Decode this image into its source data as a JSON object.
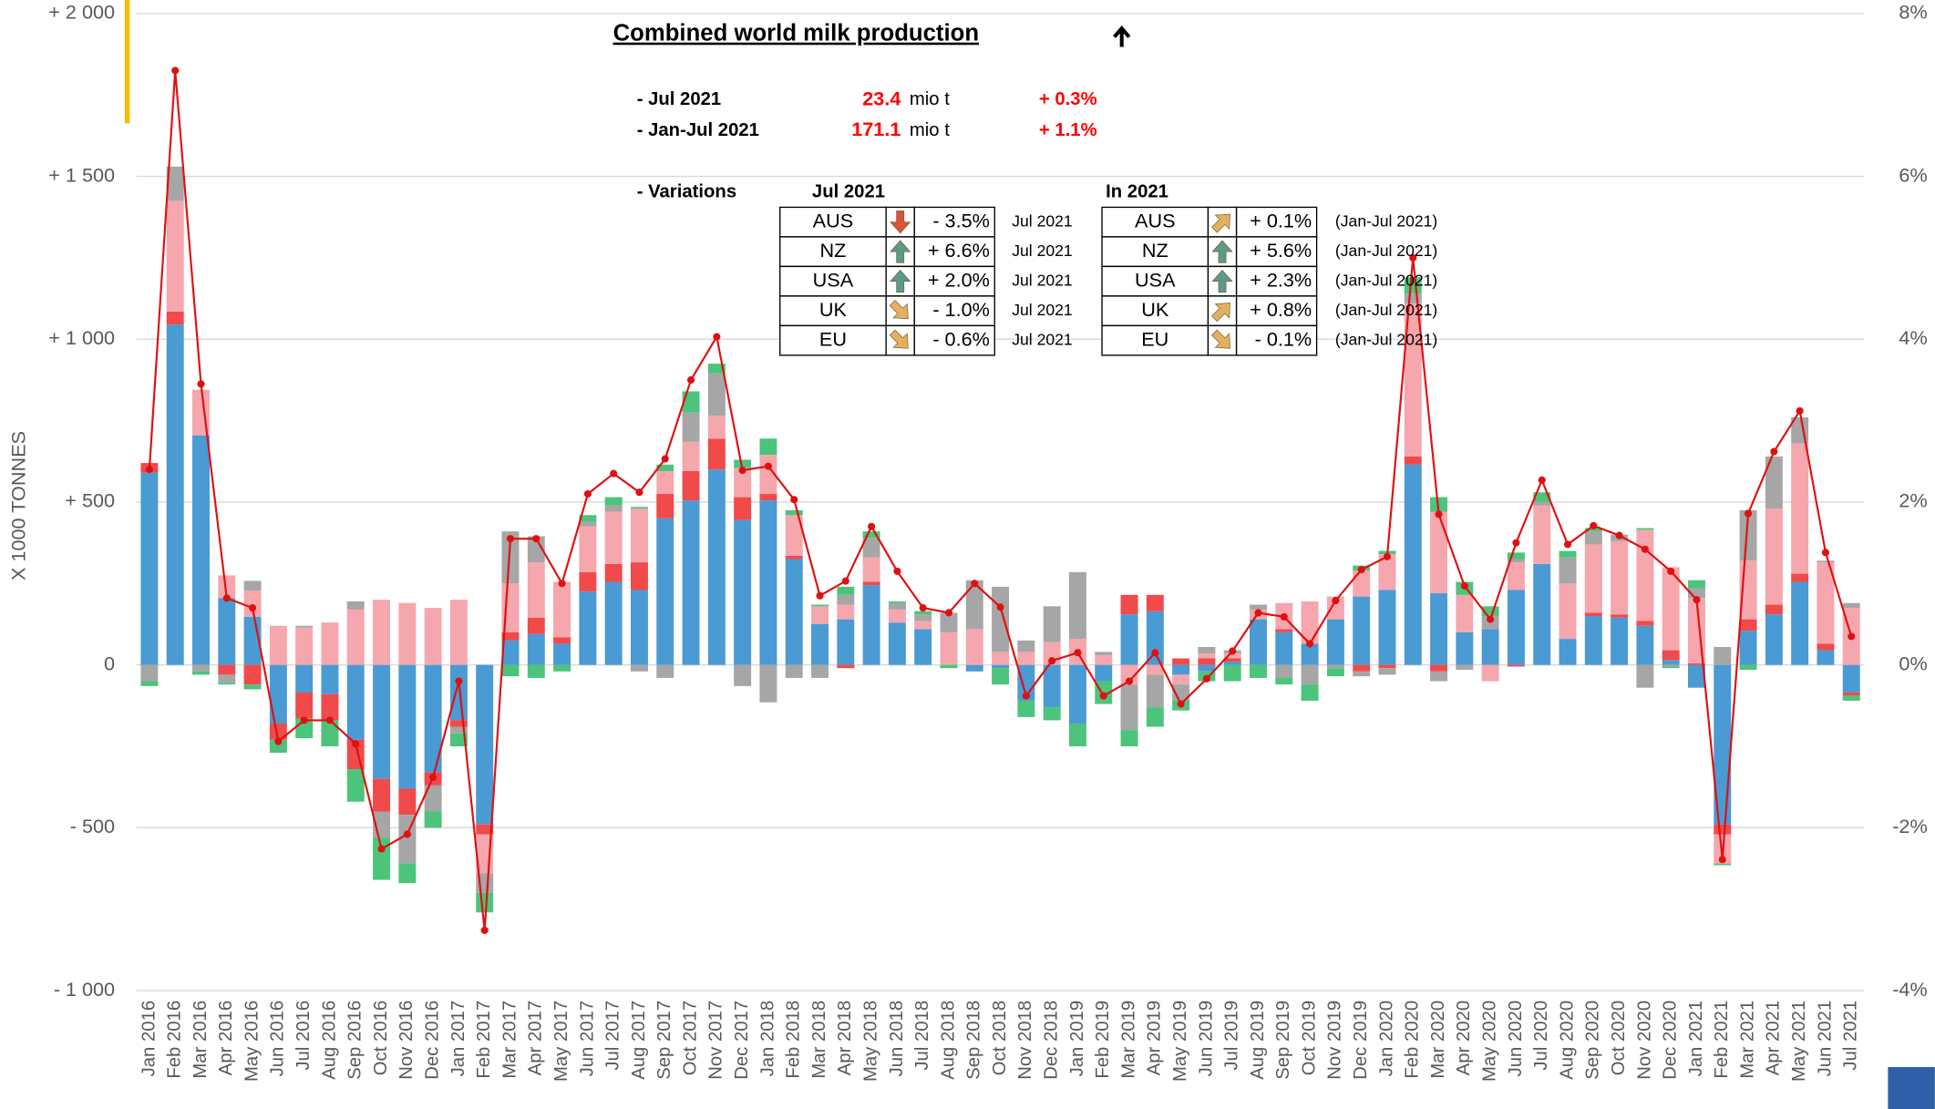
{
  "chart_data": {
    "type": "bar",
    "stacked": true,
    "title": "Combined world milk production",
    "ylabel": "X 1000 TONNES",
    "categories": [
      "Jan 2016",
      "Feb 2016",
      "Mar 2016",
      "Apr 2016",
      "May 2016",
      "Jun 2016",
      "Jul 2016",
      "Aug 2016",
      "Sep 2016",
      "Oct 2016",
      "Nov 2016",
      "Dec 2016",
      "Jan 2017",
      "Feb 2017",
      "Mar 2017",
      "Apr 2017",
      "May 2017",
      "Jun 2017",
      "Jul 2017",
      "Aug 2017",
      "Sep 2017",
      "Oct 2017",
      "Nov 2017",
      "Dec 2017",
      "Jan 2018",
      "Feb 2018",
      "Mar 2018",
      "Apr 2018",
      "May 2018",
      "Jun 2018",
      "Jul 2018",
      "Aug 2018",
      "Sep 2018",
      "Oct 2018",
      "Nov 2018",
      "Dec 2018",
      "Jan 2019",
      "Feb 2019",
      "Mar 2019",
      "Apr 2019",
      "May 2019",
      "Jun 2019",
      "Jul 2019",
      "Aug 2019",
      "Sep 2019",
      "Oct 2019",
      "Nov 2019",
      "Dec 2019",
      "Jan 2020",
      "Feb 2020",
      "Mar 2020",
      "Apr 2020",
      "May 2020",
      "Jun 2020",
      "Jul 2020",
      "Aug 2020",
      "Sep 2020",
      "Oct 2020",
      "Nov 2020",
      "Dec 2020",
      "Jan 2021",
      "Feb 2021",
      "Mar 2021",
      "Apr 2021",
      "May 2021",
      "Jun 2021",
      "Jul 2021"
    ],
    "series": [
      {
        "color": "#4a9ad4",
        "values": [
          590,
          1045,
          705,
          205,
          148,
          -180,
          -85,
          -90,
          -230,
          -350,
          -380,
          -330,
          -170,
          -490,
          75,
          95,
          65,
          225,
          255,
          230,
          450,
          505,
          600,
          445,
          505,
          325,
          125,
          140,
          245,
          130,
          110,
          0,
          -20,
          -10,
          -110,
          -130,
          -180,
          -50,
          155,
          165,
          -30,
          -20,
          10,
          140,
          100,
          65,
          140,
          210,
          230,
          615,
          220,
          100,
          110,
          230,
          310,
          80,
          150,
          145,
          120,
          15,
          -70,
          -490,
          105,
          155,
          255,
          45,
          -85
        ]
      },
      {
        "color": "#f04a4a",
        "values": [
          30,
          40,
          0,
          -30,
          -60,
          -50,
          -80,
          -80,
          -90,
          -100,
          -80,
          -40,
          -20,
          -30,
          25,
          50,
          20,
          60,
          55,
          85,
          75,
          90,
          95,
          70,
          20,
          10,
          0,
          -10,
          10,
          0,
          0,
          0,
          0,
          0,
          0,
          0,
          0,
          0,
          60,
          50,
          20,
          20,
          10,
          0,
          10,
          0,
          0,
          -20,
          -10,
          25,
          -20,
          0,
          0,
          -5,
          0,
          0,
          10,
          10,
          15,
          30,
          5,
          -30,
          35,
          30,
          25,
          20,
          -10
        ]
      },
      {
        "color": "#f6a6ad",
        "values": [
          0,
          340,
          140,
          70,
          80,
          120,
          115,
          130,
          170,
          200,
          190,
          175,
          200,
          -120,
          150,
          170,
          170,
          140,
          160,
          165,
          70,
          90,
          70,
          90,
          120,
          125,
          55,
          45,
          75,
          40,
          25,
          100,
          110,
          40,
          40,
          70,
          80,
          30,
          -60,
          -30,
          -30,
          15,
          15,
          30,
          80,
          130,
          70,
          80,
          110,
          470,
          250,
          115,
          -50,
          85,
          180,
          170,
          210,
          225,
          280,
          255,
          200,
          -90,
          180,
          295,
          400,
          250,
          175
        ]
      },
      {
        "color": "#a6a6a6",
        "values": [
          -50,
          105,
          -20,
          -25,
          30,
          0,
          5,
          0,
          25,
          -80,
          -150,
          -80,
          -20,
          -60,
          160,
          80,
          0,
          15,
          20,
          -20,
          -40,
          90,
          130,
          -65,
          -115,
          -40,
          -40,
          30,
          60,
          20,
          20,
          60,
          150,
          200,
          35,
          110,
          205,
          10,
          -140,
          -100,
          -50,
          20,
          10,
          15,
          -40,
          -60,
          -10,
          -15,
          -20,
          30,
          -30,
          -15,
          40,
          10,
          10,
          80,
          40,
          20,
          -70,
          -5,
          30,
          55,
          155,
          160,
          80,
          5,
          15
        ]
      },
      {
        "color": "#4cc47c",
        "values": [
          -15,
          0,
          -10,
          -5,
          -15,
          -40,
          -60,
          -80,
          -100,
          -130,
          -60,
          -50,
          -40,
          -60,
          -35,
          -40,
          -20,
          20,
          25,
          5,
          20,
          65,
          30,
          25,
          50,
          15,
          5,
          25,
          20,
          5,
          10,
          -10,
          0,
          -50,
          -50,
          -40,
          -70,
          -70,
          -50,
          -60,
          -30,
          -30,
          -50,
          -40,
          -20,
          -50,
          -25,
          15,
          10,
          50,
          45,
          40,
          30,
          20,
          30,
          20,
          10,
          0,
          5,
          -5,
          25,
          -5,
          -15,
          0,
          0,
          0,
          -15
        ]
      },
      {
        "type": "line",
        "axis": "y2",
        "color": "#e01010",
        "values": [
          2.4,
          7.3,
          3.45,
          0.82,
          0.7,
          -0.94,
          -0.68,
          -0.68,
          -0.97,
          -2.26,
          -2.08,
          -1.38,
          -0.2,
          -3.26,
          1.55,
          1.55,
          1.0,
          2.1,
          2.35,
          2.12,
          2.53,
          3.5,
          4.03,
          2.39,
          2.44,
          2.03,
          0.85,
          1.03,
          1.7,
          1.15,
          0.7,
          0.64,
          1.0,
          0.71,
          -0.38,
          0.05,
          0.15,
          -0.38,
          -0.2,
          0.15,
          -0.48,
          -0.17,
          0.17,
          0.64,
          0.59,
          0.26,
          0.79,
          1.17,
          1.33,
          5.0,
          1.85,
          0.97,
          0.56,
          1.5,
          2.27,
          1.48,
          1.71,
          1.59,
          1.42,
          1.15,
          0.8,
          -2.39,
          1.86,
          2.62,
          3.12,
          1.38,
          0.35
        ]
      }
    ],
    "ylim": [
      -1000,
      2000
    ],
    "yticks": [
      {
        "value": -1000,
        "label": "- 1 000"
      },
      {
        "value": -500,
        "label": "- 500"
      },
      0,
      {
        "value": 500,
        "label": "+ 500"
      },
      {
        "value": 1000,
        "label": "+ 1 000"
      },
      {
        "value": 1500,
        "label": "+ 1 500"
      },
      {
        "value": 2000,
        "label": "+ 2 000"
      }
    ],
    "y2lim": [
      -4,
      8
    ],
    "y2ticks": [
      {
        "value": -4,
        "label": "-4%"
      },
      {
        "value": -2,
        "label": "-2%"
      },
      {
        "value": 0,
        "label": "0%"
      },
      {
        "value": 2,
        "label": "2%"
      },
      {
        "value": 4,
        "label": "4%"
      },
      {
        "value": 6,
        "label": "6%"
      },
      {
        "value": 8,
        "label": "8%"
      }
    ],
    "grid": true,
    "summary": [
      {
        "period": "- Jul 2021",
        "value": 23.4,
        "unit": "mio t",
        "change": "+ 0.3%"
      },
      {
        "period": "- Jan-Jul 2021",
        "value": 171.1,
        "unit": "mio t",
        "change": "+ 1.1%"
      }
    ],
    "variations": {
      "label": "- Variations",
      "tables": [
        {
          "heading": "Jul 2021",
          "rows": [
            {
              "country": "AUS",
              "change": "- 3.5%",
              "period": "Jul 2021"
            },
            {
              "country": "NZ",
              "change": "+ 6.6%",
              "period": "Jul 2021"
            },
            {
              "country": "USA",
              "change": "+ 2.0%",
              "period": "Jul 2021"
            },
            {
              "country": "UK",
              "change": "- 1.0%",
              "period": "Jul 2021"
            },
            {
              "country": "EU",
              "change": "- 0.6%",
              "period": "Jul 2021"
            }
          ]
        },
        {
          "heading": "In 2021",
          "rows": [
            {
              "country": "AUS",
              "change": "+ 0.1%",
              "period": "(Jan-Jul 2021)"
            },
            {
              "country": "NZ",
              "change": "+ 5.6%",
              "period": "(Jan-Jul 2021)"
            },
            {
              "country": "USA",
              "change": "+ 2.3%",
              "period": "(Jan-Jul 2021)"
            },
            {
              "country": "UK",
              "change": "+ 0.8%",
              "period": "(Jan-Jul 2021)"
            },
            {
              "country": "EU",
              "change": "- 0.1%",
              "period": "(Jan-Jul 2021)"
            }
          ]
        }
      ]
    }
  }
}
